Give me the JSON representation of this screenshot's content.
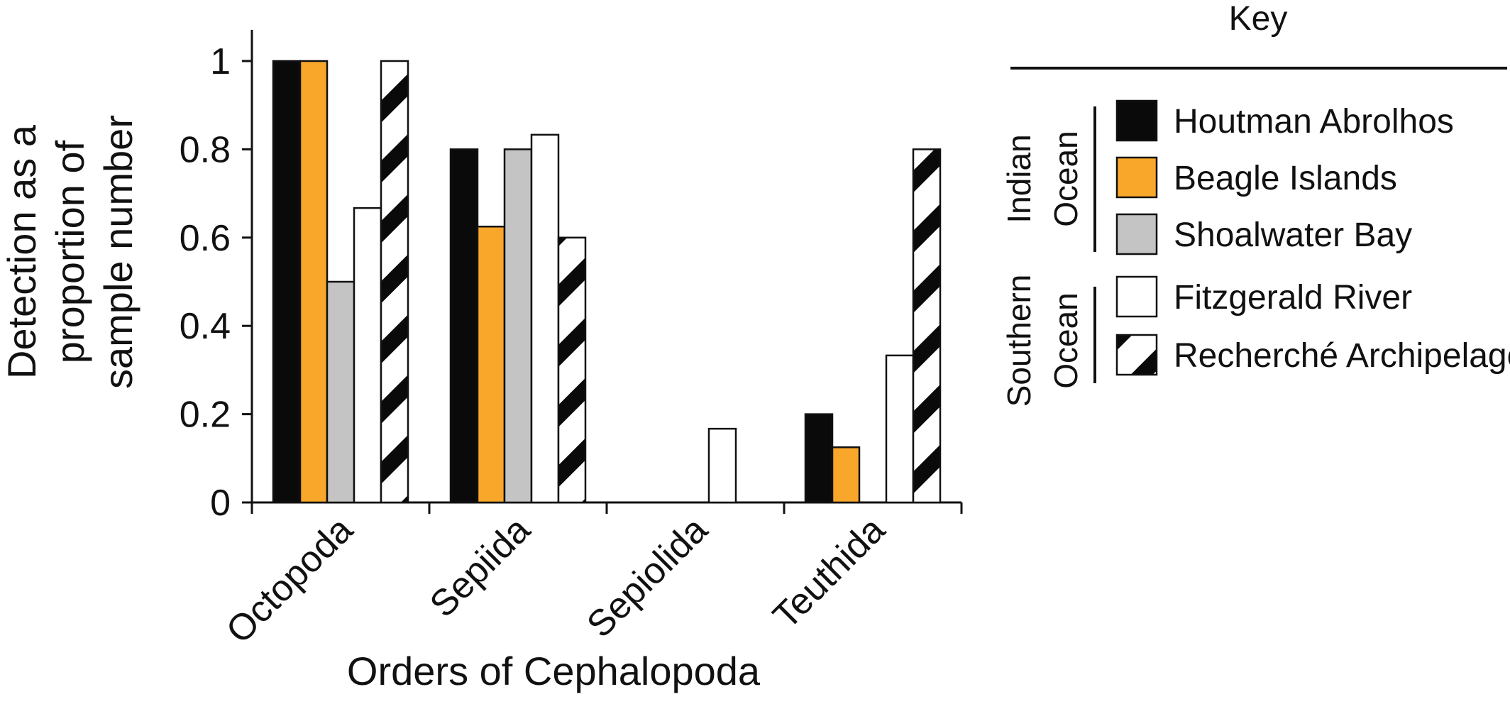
{
  "chart_data": {
    "type": "bar",
    "xlabel": "Orders of Cephalopoda",
    "ylabel_lines": [
      "Detection as a",
      "proportion of",
      "sample number"
    ],
    "ylim": [
      0,
      1
    ],
    "yticks": [
      {
        "value": 0,
        "label": "0"
      },
      {
        "value": 0.2,
        "label": "0.2"
      },
      {
        "value": 0.4,
        "label": "0.4"
      },
      {
        "value": 0.6,
        "label": "0.6"
      },
      {
        "value": 0.8,
        "label": "0.8"
      },
      {
        "value": 1,
        "label": "1"
      }
    ],
    "categories": [
      "Octopoda",
      "Sepiida",
      "Sepiolida",
      "Teuthida"
    ],
    "series": [
      {
        "name": "Houtman Abrolhos",
        "style": "black",
        "values": [
          1.0,
          0.8,
          0,
          0.2
        ]
      },
      {
        "name": "Beagle Islands",
        "style": "orange",
        "values": [
          1.0,
          0.625,
          0,
          0.125
        ]
      },
      {
        "name": "Shoalwater Bay",
        "style": "gray",
        "values": [
          0.5,
          0.8,
          0,
          0
        ]
      },
      {
        "name": "Fitzgerald River",
        "style": "white",
        "values": [
          0.667,
          0.833,
          0.167,
          0.333
        ]
      },
      {
        "name": "Recherché Archipelago",
        "style": "stripes",
        "values": [
          1.0,
          0.6,
          0,
          0.8
        ]
      }
    ],
    "colors": {
      "black": "#0a0a0a",
      "orange": "#f9a72b",
      "gray": "#c4c4c4",
      "white": "#ffffff",
      "stripe": "#0a0a0a"
    },
    "grid": false,
    "legend": {
      "title": "Key",
      "placement": "right",
      "groups": [
        {
          "label_lines": [
            "Indian",
            "Ocean"
          ],
          "series": [
            "Houtman Abrolhos",
            "Beagle Islands",
            "Shoalwater Bay"
          ]
        },
        {
          "label_lines": [
            "Southern",
            "Ocean"
          ],
          "series": [
            "Fitzgerald River",
            "Recherché Archipelago"
          ]
        }
      ]
    }
  }
}
